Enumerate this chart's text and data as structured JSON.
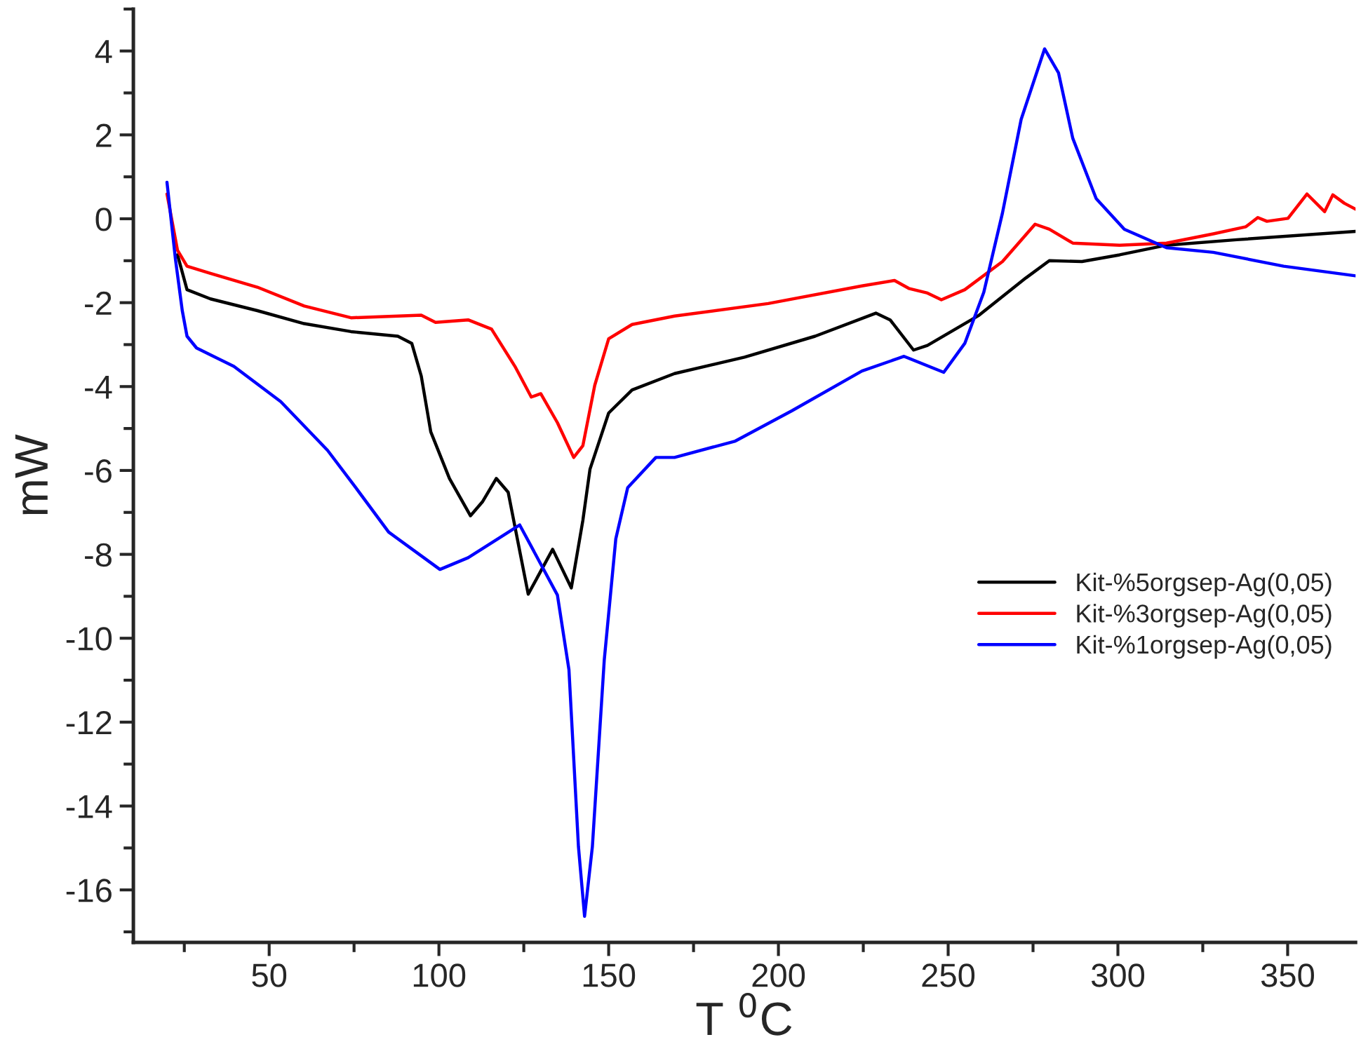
{
  "chart_data": {
    "type": "line",
    "xlabel": "T $^{0}$C",
    "ylabel": "mW",
    "xlim": [
      10,
      370
    ],
    "ylim": [
      -17.25,
      5
    ],
    "xticks": [
      50,
      100,
      150,
      200,
      250,
      300,
      350
    ],
    "yticks": [
      -16,
      -14,
      -12,
      -10,
      -8,
      -6,
      -4,
      -2,
      0,
      2,
      4
    ],
    "grid": false,
    "legend": "right",
    "line_style": "solid",
    "marker": "none",
    "series": [
      {
        "name": "Kit-%5orgsep-Ag(0,05)",
        "color": "#000000",
        "x": [
          23,
          25.8,
          32.7,
          46.5,
          60.3,
          74.1,
          87.9,
          92,
          94.8,
          97.6,
          103.1,
          109.3,
          112.8,
          116.9,
          120.4,
          126.3,
          133.5,
          139,
          142.4,
          144.5,
          150,
          156.9,
          169.4,
          190,
          210.8,
          228.7,
          232.9,
          239.8,
          243.9,
          259.1,
          272.9,
          279.8,
          289.4,
          300.5,
          314.3,
          335,
          370
        ],
        "values": [
          -0.86,
          -1.69,
          -1.91,
          -2.19,
          -2.5,
          -2.69,
          -2.8,
          -2.97,
          -3.75,
          -5.08,
          -6.19,
          -7.08,
          -6.75,
          -6.19,
          -6.52,
          -8.95,
          -7.88,
          -8.8,
          -7.19,
          -5.97,
          -4.63,
          -4.08,
          -3.69,
          -3.3,
          -2.8,
          -2.25,
          -2.41,
          -3.13,
          -3.02,
          -2.3,
          -1.41,
          -1.0,
          -1.02,
          -0.86,
          -0.63,
          -0.5,
          -0.3
        ]
      },
      {
        "name": "Kit-%3orgsep-Ag(0,05)",
        "color": "#ff0000",
        "x": [
          19.9,
          23,
          25.8,
          32.7,
          46.5,
          60.3,
          74.1,
          94.8,
          99,
          108.6,
          115.5,
          122.4,
          127.2,
          130,
          134.9,
          139.7,
          142.4,
          145.9,
          150,
          156.9,
          169.4,
          197,
          224.6,
          234.2,
          238.4,
          243.9,
          248,
          254.9,
          266,
          275.6,
          279.8,
          286.7,
          300.5,
          314.3,
          328.1,
          337.7,
          341.2,
          343.9,
          350.1,
          355.7,
          360.9,
          363.3,
          366.7,
          370
        ],
        "values": [
          0.59,
          -0.75,
          -1.13,
          -1.3,
          -1.63,
          -2.08,
          -2.36,
          -2.3,
          -2.47,
          -2.41,
          -2.63,
          -3.52,
          -4.25,
          -4.17,
          -4.86,
          -5.69,
          -5.41,
          -3.97,
          -2.86,
          -2.52,
          -2.32,
          -2.02,
          -1.6,
          -1.47,
          -1.66,
          -1.77,
          -1.93,
          -1.69,
          -1.02,
          -0.13,
          -0.25,
          -0.58,
          -0.63,
          -0.58,
          -0.36,
          -0.19,
          0.03,
          -0.06,
          0.01,
          0.59,
          0.17,
          0.57,
          0.37,
          0.23
        ]
      },
      {
        "name": "Kit-%1orgsep-Ag(0,05)",
        "color": "#0000ff",
        "x": [
          19.9,
          22.4,
          24.4,
          25.8,
          28.6,
          39.6,
          53.4,
          67.2,
          75.5,
          85.2,
          100.3,
          108.6,
          123.8,
          134.9,
          138.3,
          141.1,
          142.9,
          145.2,
          148.7,
          152.1,
          155.6,
          163.9,
          169.4,
          187.3,
          203.9,
          224.6,
          237,
          248.7,
          254.9,
          260.5,
          266,
          271.5,
          278.4,
          282.5,
          286.7,
          293.6,
          301.9,
          314.3,
          328.1,
          348.8,
          370
        ],
        "values": [
          0.87,
          -0.97,
          -2.19,
          -2.8,
          -3.08,
          -3.52,
          -4.36,
          -5.52,
          -6.41,
          -7.47,
          -8.36,
          -8.08,
          -7.3,
          -8.97,
          -10.75,
          -14.97,
          -16.63,
          -14.97,
          -10.52,
          -7.63,
          -6.41,
          -5.69,
          -5.69,
          -5.3,
          -4.58,
          -3.63,
          -3.28,
          -3.66,
          -2.97,
          -1.75,
          0.14,
          2.37,
          4.05,
          3.48,
          1.92,
          0.48,
          -0.25,
          -0.69,
          -0.8,
          -1.13,
          -1.36
        ]
      }
    ]
  }
}
